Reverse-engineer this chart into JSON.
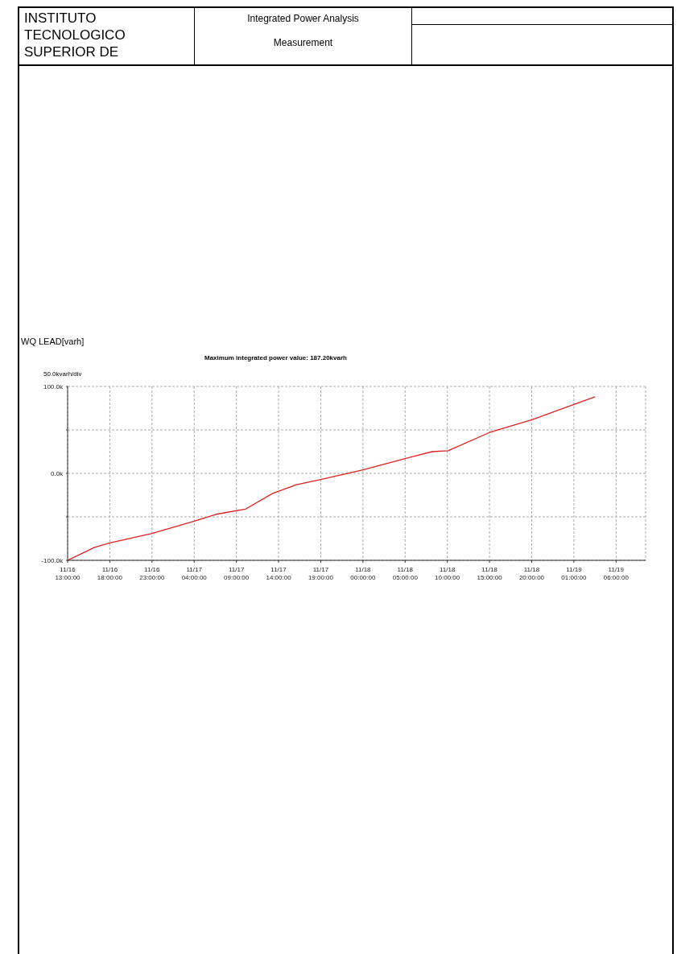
{
  "chart_data": {
    "type": "line",
    "title": "WQ LEAD[varh]",
    "subtitle": "Maximum integrated power value:  187.20kvarh",
    "annotations": [
      "INSTITUTO TECNOLOGICO SUPERIOR DE",
      "Integrated Power Analysis",
      "Measurement",
      "50.0kvarh/div"
    ],
    "x": [
      "--11-16T13:00",
      "--11-16T16:12",
      "--11-16T18:00",
      "--11-16T23:00",
      "--11-17T04:00",
      "--11-17T06:36",
      "--11-17T10:06",
      "--11-17T13:18",
      "--11-17T16:06",
      "--11-17T19:00",
      "--11-18T00:00",
      "--11-18T05:00",
      "--11-18T08:12",
      "--11-18T10:06",
      "--11-18T15:00",
      "--11-18T20:06",
      "--11-19T01:12",
      "--11-19T03:30"
    ],
    "series": [
      {
        "color": "#e02020",
        "values": [
          -100,
          -85,
          -80,
          -69,
          -55,
          -47,
          -41,
          -23,
          -13,
          -7,
          4,
          17,
          25,
          26,
          47,
          62,
          80,
          88
        ]
      }
    ],
    "xlim": [
      "--11-16T13:00",
      "--11-19T09:30"
    ],
    "xticks": [
      {
        "value": "--11-16T13:00",
        "label": "11/16\n13:00:00"
      },
      {
        "value": "--11-16T18:00",
        "label": "11/16\n18:00:00"
      },
      {
        "value": "--11-16T23:00",
        "label": "11/16\n23:00:00"
      },
      {
        "value": "--11-17T04:00",
        "label": "11/17\n04:00:00"
      },
      {
        "value": "--11-17T09:00",
        "label": "11/17\n09:00:00"
      },
      {
        "value": "--11-17T14:00",
        "label": "11/17\n14:00:00"
      },
      {
        "value": "--11-17T19:00",
        "label": "11/17\n19:00:00"
      },
      {
        "value": "--11-18T00:00",
        "label": "11/18\n00:00:00"
      },
      {
        "value": "--11-18T05:00",
        "label": "11/18\n05:00:00"
      },
      {
        "value": "--11-18T10:00",
        "label": "11/18\n10:00:00"
      },
      {
        "value": "--11-18T15:00",
        "label": "11/18\n15:00:00"
      },
      {
        "value": "--11-18T20:00",
        "label": "11/18\n20:00:00"
      },
      {
        "value": "--11-19T01:00",
        "label": "11/19\n01:00:00"
      },
      {
        "value": "--11-19T06:00",
        "label": "11/19\n06:00:00"
      }
    ],
    "ylim": [
      -100,
      100
    ],
    "yticks": [
      {
        "value": -100,
        "label": "-100.0k"
      },
      {
        "value": -50,
        "label": null
      },
      {
        "value": 0,
        "label": "0.0k"
      },
      {
        "value": 50,
        "label": null
      },
      {
        "value": 100,
        "label": "100.0k"
      }
    ],
    "grid": true,
    "marker": "none",
    "line_style": "solid"
  }
}
